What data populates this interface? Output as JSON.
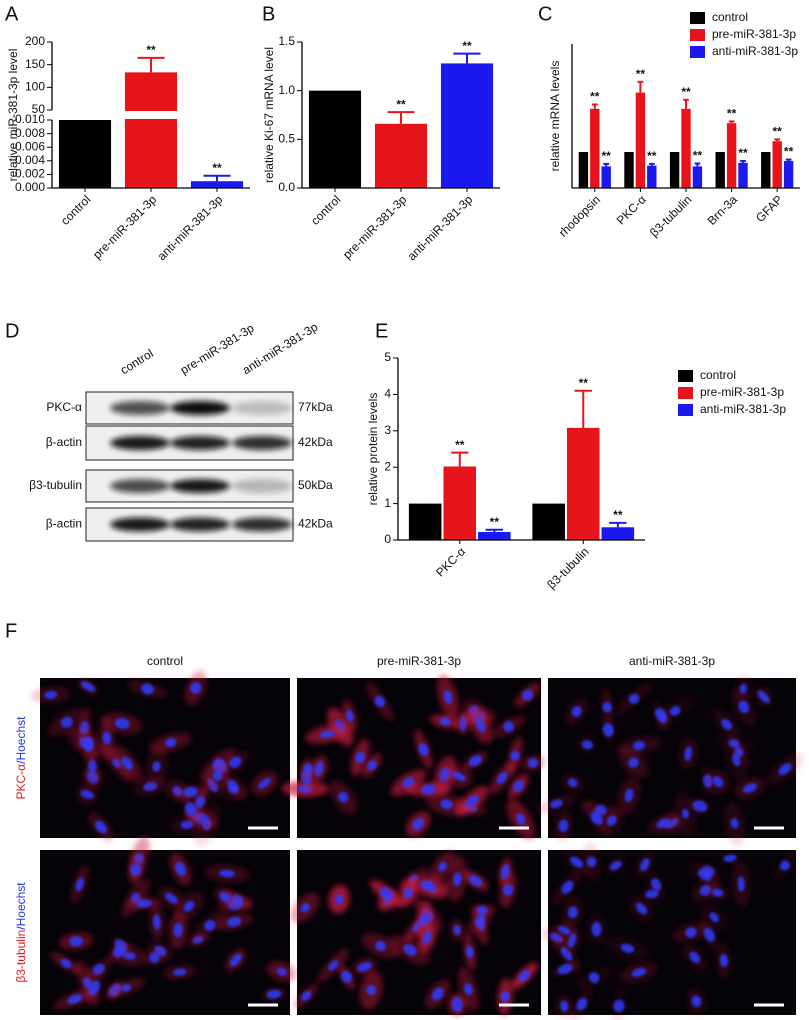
{
  "chart_data": [
    {
      "panel": "A",
      "type": "bar",
      "y_label": "relative miR-381-3p level",
      "categories": [
        "control",
        "pre-miR-381-3p",
        "anti-miR-381-3p"
      ],
      "series": [
        {
          "values": [
            1,
            133,
            0.001
          ],
          "errors": [
            null,
            32,
            0.0008
          ],
          "colors": [
            "#000000",
            "#e8141b",
            "#1a1aef"
          ],
          "annotations": [
            null,
            "**",
            "**"
          ]
        }
      ],
      "broken_axis": {
        "upper": {
          "ylim": [
            50,
            200
          ],
          "yticks": [
            50,
            100,
            150,
            200
          ]
        },
        "lower": {
          "ylim": [
            0,
            0.01
          ],
          "yticks": [
            {
              "value": 0,
              "label": "0.000"
            },
            {
              "value": 0.002,
              "label": "0.002"
            },
            {
              "value": 0.004,
              "label": "0.004"
            },
            {
              "value": 0.006,
              "label": "0.006"
            },
            {
              "value": 0.008,
              "label": "0.008"
            },
            {
              "value": 0.01,
              "label": "0.010"
            }
          ]
        }
      }
    },
    {
      "panel": "B",
      "type": "bar",
      "y_label": "relative Ki-67 mRNA level",
      "categories": [
        "control",
        "pre-miR-381-3p",
        "anti-miR-381-3p"
      ],
      "series": [
        {
          "values": [
            1,
            0.66,
            1.28
          ],
          "errors": [
            null,
            0.12,
            0.1
          ],
          "colors": [
            "#000000",
            "#e8141b",
            "#1a1aef"
          ],
          "annotations": [
            null,
            "**",
            "**"
          ]
        }
      ],
      "ylim": [
        0,
        1.5
      ],
      "yticks": [
        {
          "value": 0,
          "label": "0.0"
        },
        {
          "value": 0.5,
          "label": "0.5"
        },
        {
          "value": 1,
          "label": "1.0"
        },
        {
          "value": 1.5,
          "label": "1.5"
        }
      ]
    },
    {
      "panel": "C",
      "type": "bar",
      "y_label": "relative mRNA levels",
      "categories": [
        "rhodopsin",
        "PKC-α",
        "β3-tubulin",
        "Brn-3a",
        "GFAP"
      ],
      "series": [
        {
          "name": "control",
          "color": "#000000",
          "values": [
            1,
            1,
            1,
            1,
            1
          ]
        },
        {
          "name": "pre-miR-381-3p",
          "color": "#e8141b",
          "values": [
            2.2,
            2.65,
            2.2,
            1.8,
            1.3
          ],
          "errors": [
            0.12,
            0.3,
            0.25,
            0.05,
            0.05
          ],
          "annotations": [
            "**",
            "**",
            "**",
            "**",
            "**"
          ]
        },
        {
          "name": "anti-miR-381-3p",
          "color": "#1a1aef",
          "values": [
            0.6,
            0.62,
            0.6,
            0.7,
            0.75
          ],
          "errors": [
            0.07,
            0.05,
            0.08,
            0.05,
            0.04
          ],
          "annotations": [
            "**",
            "**",
            "**",
            "**",
            "**"
          ]
        }
      ],
      "ylim": [
        0,
        4
      ]
    },
    {
      "panel": "E",
      "type": "bar",
      "y_label": "relative protein levels",
      "categories": [
        "PKC-α",
        "β3-tubulin"
      ],
      "series": [
        {
          "name": "control",
          "color": "#000000",
          "values": [
            1,
            1
          ]
        },
        {
          "name": "pre-miR-381-3p",
          "color": "#e8141b",
          "values": [
            2.02,
            3.08
          ],
          "errors": [
            0.38,
            1.02
          ],
          "annotations": [
            "**",
            "**"
          ]
        },
        {
          "name": "anti-miR-381-3p",
          "color": "#1a1aef",
          "values": [
            0.22,
            0.35
          ],
          "errors": [
            0.06,
            0.12
          ],
          "annotations": [
            "**",
            "**"
          ]
        }
      ],
      "ylim": [
        0,
        5
      ],
      "yticks": [
        0,
        1,
        2,
        3,
        4,
        5
      ]
    }
  ],
  "western_blot": {
    "panel": "D",
    "lanes": [
      "control",
      "pre-miR-381-3p",
      "anti-miR-381-3p"
    ],
    "rows": [
      {
        "label": "PKC-α",
        "size": "77kDa"
      },
      {
        "label": "β-actin",
        "size": "42kDa"
      },
      {
        "label": "β3-tubulin",
        "size": "50kDa"
      },
      {
        "label": "β-actin",
        "size": "42kDa"
      }
    ]
  },
  "immunofluorescence": {
    "panel": "F",
    "columns": [
      "control",
      "pre-miR-381-3p",
      "anti-miR-381-3p"
    ],
    "rows": [
      {
        "marker": "PKC-α",
        "counterstain": "/Hoechst"
      },
      {
        "marker": "β3-tubulin",
        "counterstain": "/Hoechst"
      }
    ]
  }
}
